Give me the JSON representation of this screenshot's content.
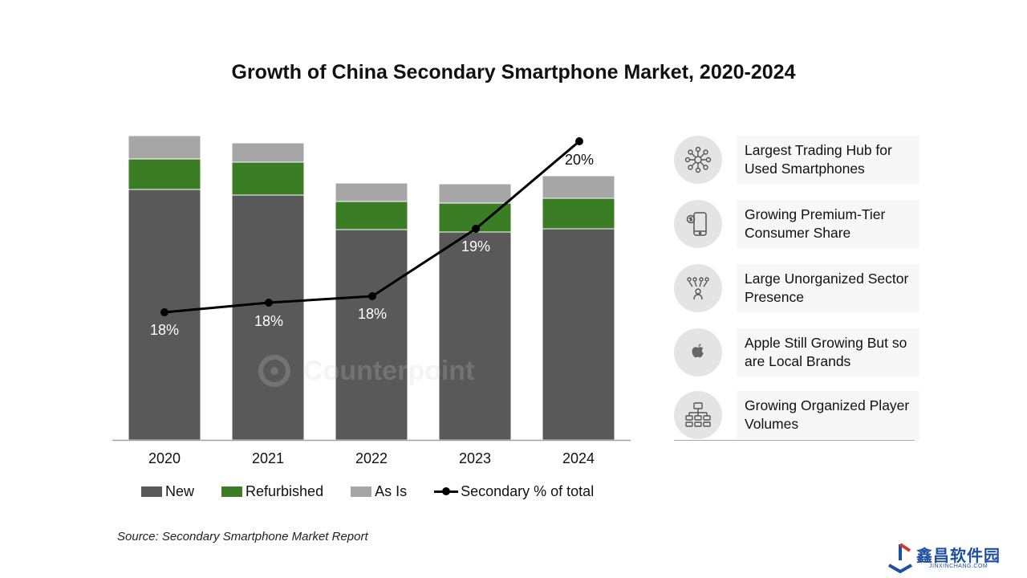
{
  "chart_data": {
    "type": "bar",
    "stacked": true,
    "title": "Growth of China Secondary Smartphone Market, 2020-2024",
    "categories": [
      "2020",
      "2021",
      "2022",
      "2023",
      "2024"
    ],
    "series": [
      {
        "name": "New",
        "type": "bar",
        "color": "#595959",
        "values": [
          312,
          305,
          262,
          259,
          263
        ]
      },
      {
        "name": "Refurbished",
        "type": "bar",
        "color": "#3a7d24",
        "values": [
          38,
          41,
          35,
          36,
          38
        ]
      },
      {
        "name": "As Is",
        "type": "bar",
        "color": "#a6a6a6",
        "values": [
          29,
          24,
          23,
          24,
          28
        ]
      },
      {
        "name": "Secondary % of total",
        "type": "line",
        "color": "#000000",
        "values": [
          18,
          18,
          18,
          19,
          20
        ],
        "labels": [
          "18%",
          "18%",
          "18%",
          "19%",
          "20%"
        ]
      }
    ],
    "legend_placement": "bottom",
    "grid": false,
    "source": "Source: Secondary Smartphone Market Report"
  },
  "watermark": "Counterpoint",
  "highlights": [
    {
      "text": "Largest Trading Hub for Used Smartphones",
      "icon": "network-hub-icon"
    },
    {
      "text": "Growing Premium-Tier Consumer Share",
      "icon": "smartphone-dollar-icon"
    },
    {
      "text": "Large Unorganized Sector Presence",
      "icon": "scattered-people-icon"
    },
    {
      "text": "Apple Still Growing But so are Local Brands",
      "icon": "apple-logo-icon"
    },
    {
      "text": "Growing Organized Player Volumes",
      "icon": "org-chart-icon"
    }
  ],
  "corner_logo": {
    "name": "鑫昌软件园",
    "url": "JINXINCHANG.COM"
  }
}
